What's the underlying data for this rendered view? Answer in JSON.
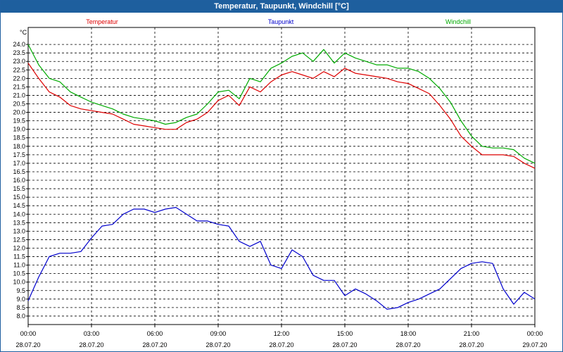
{
  "window": {
    "title": "Temperatur, Taupunkt, Windchill [°C]"
  },
  "chart_data": {
    "type": "line",
    "title": "Temperatur, Taupunkt, Windchill [°C]",
    "ylabel": "°C",
    "ylim": [
      7.5,
      25.0
    ],
    "yticks": [
      "8.0",
      "8.5",
      "9.0",
      "9.5",
      "10.0",
      "10.5",
      "11.0",
      "11.5",
      "12.0",
      "12.5",
      "13.0",
      "13.5",
      "14.0",
      "14.5",
      "15.0",
      "15.5",
      "16.0",
      "16.5",
      "17.0",
      "17.5",
      "18.0",
      "18.5",
      "19.0",
      "19.5",
      "20.0",
      "20.5",
      "21.0",
      "21.5",
      "22.0",
      "22.5",
      "23.0",
      "23.5",
      "24.0"
    ],
    "xlim": [
      0,
      24
    ],
    "xticks": [
      {
        "time": "00:00",
        "date": "28.07.20"
      },
      {
        "time": "03:00",
        "date": "28.07.20"
      },
      {
        "time": "06:00",
        "date": "28.07.20"
      },
      {
        "time": "09:00",
        "date": "28.07.20"
      },
      {
        "time": "12:00",
        "date": "28.07.20"
      },
      {
        "time": "15:00",
        "date": "28.07.20"
      },
      {
        "time": "18:00",
        "date": "28.07.20"
      },
      {
        "time": "21:00",
        "date": "28.07.20"
      },
      {
        "time": "00:00",
        "date": "29.07.20"
      }
    ],
    "grid": true,
    "series": [
      {
        "name": "Temperatur",
        "color": "#dd0000",
        "x": [
          0,
          0.5,
          1,
          1.5,
          2,
          2.5,
          3,
          3.5,
          4,
          4.5,
          5,
          5.5,
          6,
          6.5,
          7,
          7.5,
          8,
          8.5,
          9,
          9.5,
          10,
          10.5,
          11,
          11.5,
          12,
          12.5,
          13,
          13.5,
          14,
          14.5,
          15,
          15.5,
          16,
          16.5,
          17,
          17.5,
          18,
          18.5,
          19,
          19.5,
          20,
          20.5,
          21,
          21.5,
          22,
          22.5,
          23,
          23.5,
          24
        ],
        "y": [
          22.9,
          22.0,
          21.2,
          20.9,
          20.4,
          20.2,
          20.1,
          20.0,
          19.9,
          19.6,
          19.3,
          19.2,
          19.1,
          19.0,
          19.0,
          19.4,
          19.6,
          20.0,
          20.7,
          21.0,
          20.4,
          21.5,
          21.2,
          21.8,
          22.2,
          22.4,
          22.2,
          22.0,
          22.4,
          22.1,
          22.6,
          22.3,
          22.2,
          22.1,
          22.0,
          21.8,
          21.7,
          21.4,
          21.1,
          20.4,
          19.6,
          18.6,
          18.0,
          17.5,
          17.5,
          17.5,
          17.4,
          17.0,
          16.7
        ]
      },
      {
        "name": "Taupunkt",
        "color": "#0000cc",
        "x": [
          0,
          0.5,
          1,
          1.5,
          2,
          2.5,
          3,
          3.5,
          4,
          4.5,
          5,
          5.5,
          6,
          6.5,
          7,
          7.5,
          8,
          8.5,
          9,
          9.5,
          10,
          10.5,
          11,
          11.5,
          12,
          12.5,
          13,
          13.5,
          14,
          14.5,
          15,
          15.5,
          16,
          16.5,
          17,
          17.5,
          18,
          18.5,
          19,
          19.5,
          20,
          20.5,
          21,
          21.5,
          22,
          22.5,
          23,
          23.5,
          24
        ],
        "y": [
          8.9,
          10.3,
          11.5,
          11.7,
          11.7,
          11.8,
          12.6,
          13.3,
          13.4,
          14.0,
          14.3,
          14.3,
          14.1,
          14.3,
          14.4,
          14.0,
          13.6,
          13.6,
          13.4,
          13.3,
          12.4,
          12.1,
          12.4,
          11.0,
          10.8,
          11.9,
          11.5,
          10.4,
          10.1,
          10.1,
          9.2,
          9.6,
          9.3,
          8.9,
          8.4,
          8.5,
          8.8,
          9.0,
          9.3,
          9.6,
          10.2,
          10.8,
          11.1,
          11.2,
          11.1,
          9.6,
          8.7,
          9.4,
          9.0
        ]
      },
      {
        "name": "Windchill",
        "color": "#00aa00",
        "x": [
          0,
          0.5,
          1,
          1.5,
          2,
          2.5,
          3,
          3.5,
          4,
          4.5,
          5,
          5.5,
          6,
          6.5,
          7,
          7.5,
          8,
          8.5,
          9,
          9.5,
          10,
          10.5,
          11,
          11.5,
          12,
          12.5,
          13,
          13.5,
          14,
          14.5,
          15,
          15.5,
          16,
          16.5,
          17,
          17.5,
          18,
          18.5,
          19,
          19.5,
          20,
          20.5,
          21,
          21.5,
          22,
          22.5,
          23,
          23.5,
          24
        ],
        "y": [
          24.0,
          22.8,
          22.0,
          21.8,
          21.2,
          20.9,
          20.6,
          20.4,
          20.2,
          19.9,
          19.7,
          19.6,
          19.5,
          19.3,
          19.4,
          19.7,
          19.9,
          20.5,
          21.2,
          21.3,
          20.8,
          22.0,
          21.8,
          22.6,
          22.9,
          23.3,
          23.5,
          23.0,
          23.7,
          22.9,
          23.5,
          23.2,
          23.0,
          22.8,
          22.8,
          22.6,
          22.6,
          22.4,
          22.0,
          21.4,
          20.6,
          19.5,
          18.6,
          18.0,
          17.9,
          17.9,
          17.8,
          17.3,
          17.0
        ]
      }
    ]
  }
}
